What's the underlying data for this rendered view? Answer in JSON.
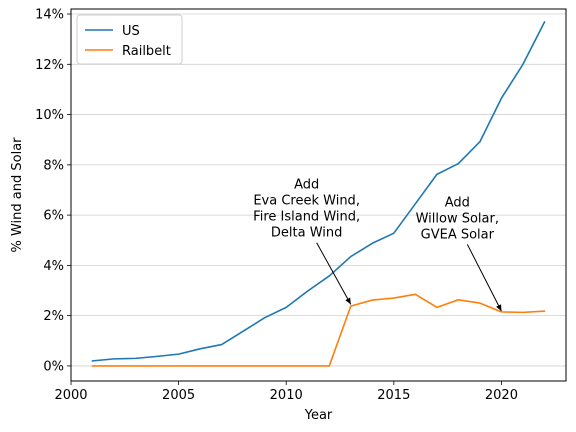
{
  "chart_data": {
    "type": "line",
    "xlabel": "Year",
    "ylabel": "% Wind and Solar",
    "xlim": [
      2000,
      2023
    ],
    "ylim": [
      -0.6,
      14.2
    ],
    "xticks": [
      2000,
      2005,
      2010,
      2015,
      2020
    ],
    "yticks": [
      0,
      2,
      4,
      6,
      8,
      10,
      12,
      14
    ],
    "ytick_suffix": "%",
    "grid": "horizontal",
    "legend": "top-left",
    "series": [
      {
        "name": "US",
        "color": "#1f77b4",
        "x": [
          2001,
          2002,
          2003,
          2004,
          2005,
          2006,
          2007,
          2008,
          2009,
          2010,
          2011,
          2012,
          2013,
          2014,
          2015,
          2016,
          2017,
          2018,
          2019,
          2020,
          2021,
          2022
        ],
        "y": [
          0.2,
          0.28,
          0.3,
          0.38,
          0.47,
          0.68,
          0.85,
          1.38,
          1.92,
          2.33,
          2.98,
          3.58,
          4.35,
          4.88,
          5.28,
          6.45,
          7.62,
          8.05,
          8.92,
          10.65,
          12.0,
          13.68
        ]
      },
      {
        "name": "Railbelt",
        "color": "#ff7f0e",
        "x": [
          2001,
          2002,
          2003,
          2004,
          2005,
          2006,
          2007,
          2008,
          2009,
          2010,
          2011,
          2012,
          2013,
          2014,
          2015,
          2016,
          2017,
          2018,
          2019,
          2020,
          2021,
          2022
        ],
        "y": [
          0,
          0,
          0,
          0,
          0,
          0,
          0,
          0,
          0,
          0,
          0,
          0,
          2.38,
          2.62,
          2.7,
          2.85,
          2.33,
          2.63,
          2.5,
          2.15,
          2.13,
          2.18
        ]
      }
    ],
    "annotations": [
      {
        "lines": [
          "Add",
          "Eva Creek Wind,",
          "Fire Island Wind,",
          "Delta Wind"
        ],
        "text_x": 2010.95,
        "text_y": 7.05,
        "target_x": 2013,
        "target_y": 2.45
      },
      {
        "lines": [
          "Add",
          "Willow Solar,",
          "GVEA Solar"
        ],
        "text_x": 2017.95,
        "text_y": 6.35,
        "target_x": 2020,
        "target_y": 2.18
      }
    ]
  }
}
